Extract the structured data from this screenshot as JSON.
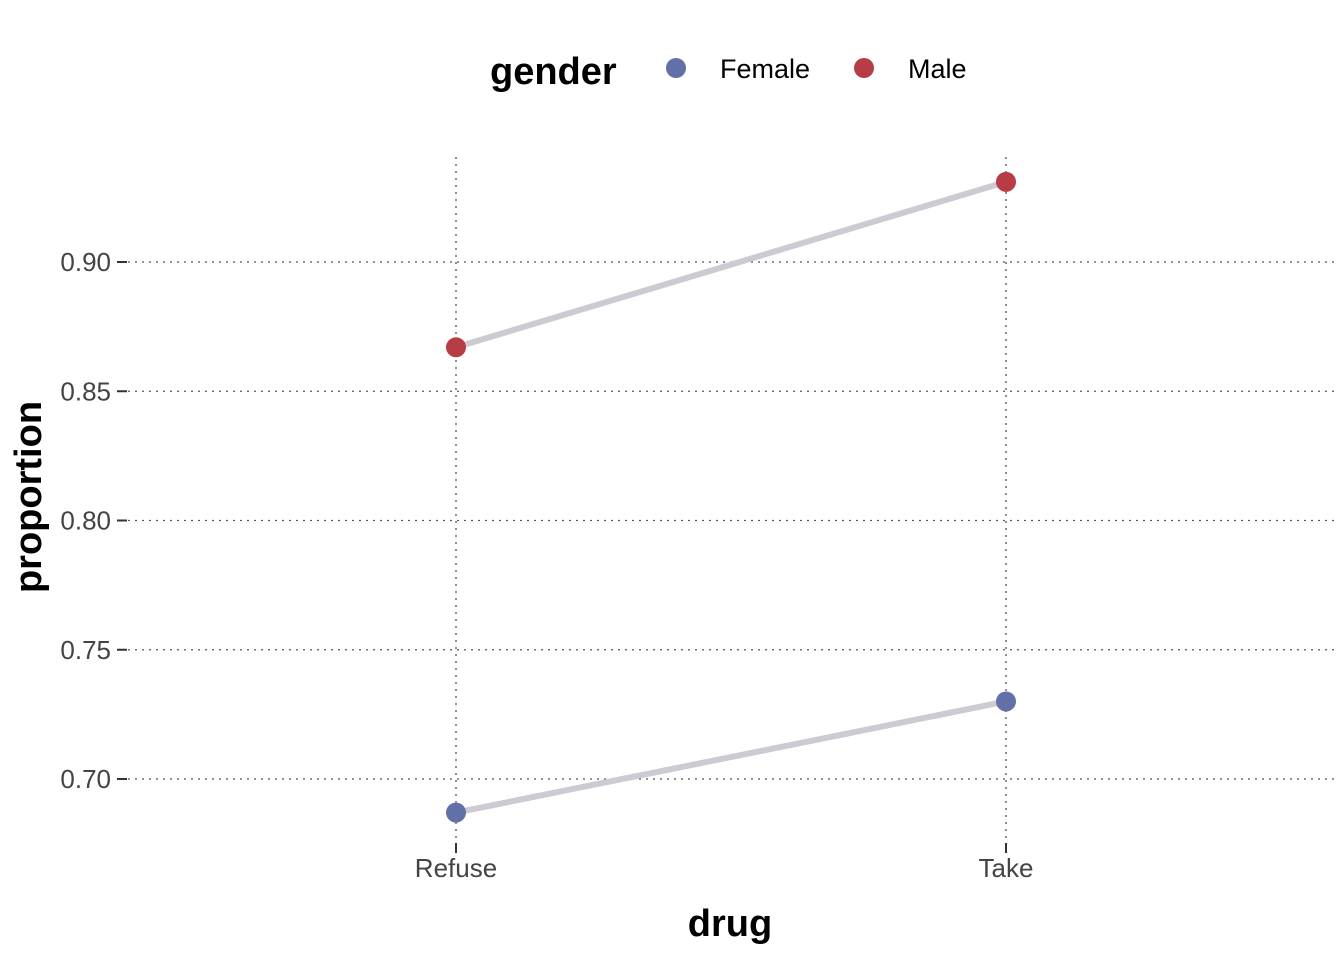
{
  "chart_data": {
    "type": "line",
    "xlabel": "drug",
    "ylabel": "proportion",
    "categories": [
      "Refuse",
      "Take"
    ],
    "ylim": [
      0.675,
      0.94
    ],
    "yticks": [
      0.7,
      0.75,
      0.8,
      0.85,
      0.9
    ],
    "ytick_labels": [
      "0.70",
      "0.75",
      "0.80",
      "0.85",
      "0.90"
    ],
    "grid": true,
    "legend": {
      "title": "gender",
      "position": "top"
    },
    "line_color": "#cccbd3",
    "series": [
      {
        "name": "Female",
        "color": "#6270a8",
        "values": [
          0.687,
          0.73
        ]
      },
      {
        "name": "Male",
        "color": "#b83c45",
        "values": [
          0.867,
          0.931
        ]
      }
    ]
  }
}
